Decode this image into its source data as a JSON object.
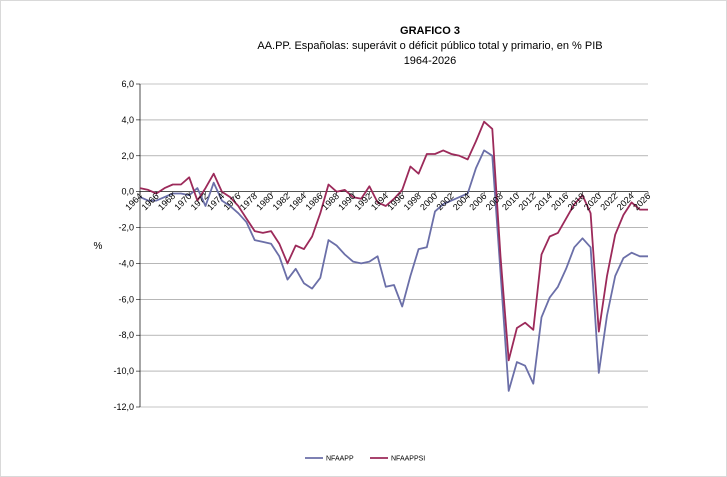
{
  "chart_data": {
    "type": "line",
    "title": "GRAFICO 3",
    "subtitle": "AA.PP. Españolas:  superávit o déficit público total y primario, en % PIB",
    "subtitle2": "1964-2026",
    "ylabel": "%",
    "xlabel": "",
    "ylim": [
      -12,
      6
    ],
    "yticks": [
      "6,0",
      "4,0",
      "2,0",
      "0,0",
      "-2,0",
      "-4,0",
      "-6,0",
      "-8,0",
      "-10,0",
      "-12,0"
    ],
    "x": [
      1964,
      1965,
      1966,
      1967,
      1968,
      1969,
      1970,
      1971,
      1972,
      1973,
      1974,
      1975,
      1976,
      1977,
      1978,
      1979,
      1980,
      1981,
      1982,
      1983,
      1984,
      1985,
      1986,
      1987,
      1988,
      1989,
      1990,
      1991,
      1992,
      1993,
      1994,
      1995,
      1996,
      1997,
      1998,
      1999,
      2000,
      2001,
      2002,
      2003,
      2004,
      2005,
      2006,
      2007,
      2008,
      2009,
      2010,
      2011,
      2012,
      2013,
      2014,
      2015,
      2016,
      2017,
      2018,
      2019,
      2020,
      2021,
      2022,
      2023,
      2024,
      2025,
      2026
    ],
    "xticks": [
      "1964",
      "1966",
      "1968",
      "1970",
      "1972",
      "1974",
      "1976",
      "1978",
      "1980",
      "1982",
      "1984",
      "1986",
      "1988",
      "1990",
      "1992",
      "1994",
      "1996",
      "1998",
      "2000",
      "2002",
      "2004",
      "2006",
      "2008",
      "2010",
      "2012",
      "2014",
      "2016",
      "2018",
      "2020",
      "2022",
      "2024",
      "2026"
    ],
    "series": [
      {
        "name": "NFAAPP",
        "color": "#6b6fa8",
        "values": [
          -0.3,
          -0.5,
          -0.5,
          -0.3,
          -0.1,
          -0.1,
          -0.2,
          0.2,
          -0.8,
          0.5,
          -0.5,
          -0.8,
          -1.2,
          -1.7,
          -2.7,
          -2.8,
          -2.9,
          -3.6,
          -4.9,
          -4.3,
          -5.1,
          -5.4,
          -4.8,
          -2.7,
          -3.0,
          -3.5,
          -3.9,
          -4.0,
          -3.9,
          -3.6,
          -5.3,
          -5.2,
          -6.4,
          -4.7,
          -3.2,
          -3.1,
          -1.1,
          -0.7,
          -0.5,
          -0.3,
          -0.1,
          1.3,
          2.3,
          2.0,
          -4.5,
          -11.1,
          -9.5,
          -9.7,
          -10.7,
          -7.0,
          -5.9,
          -5.3,
          -4.3,
          -3.1,
          -2.6,
          -3.1,
          -10.1,
          -6.9,
          -4.7,
          -3.7,
          -3.4,
          -3.6,
          -3.6
        ]
      },
      {
        "name": "NFAAPPSI",
        "color": "#9c2a5a",
        "values": [
          0.2,
          0.1,
          -0.1,
          0.2,
          0.4,
          0.4,
          0.8,
          -0.5,
          0.2,
          1.0,
          0.0,
          -0.3,
          -0.8,
          -1.5,
          -2.2,
          -2.3,
          -2.2,
          -2.9,
          -4.0,
          -3.0,
          -3.2,
          -2.5,
          -1.2,
          0.4,
          0.0,
          0.1,
          -0.3,
          -0.4,
          0.3,
          -0.6,
          -0.8,
          -0.4,
          0.1,
          1.4,
          1.0,
          2.1,
          2.1,
          2.3,
          2.1,
          2.0,
          1.8,
          2.8,
          3.9,
          3.5,
          -3.6,
          -9.4,
          -7.6,
          -7.3,
          -7.7,
          -3.5,
          -2.5,
          -2.3,
          -1.5,
          -0.7,
          -0.2,
          -1.2,
          -7.8,
          -4.7,
          -2.4,
          -1.3,
          -0.6,
          -1.0,
          -1.0
        ]
      }
    ],
    "grid": "horizontal",
    "legend_position": "bottom-center"
  }
}
